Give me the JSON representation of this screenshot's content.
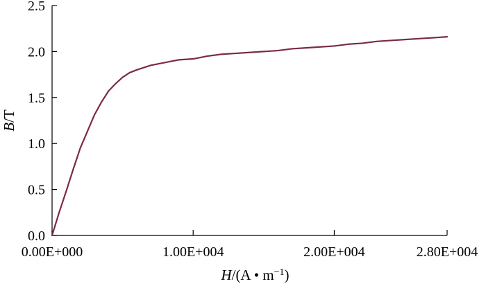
{
  "chart_data": {
    "type": "line",
    "title": "",
    "xlabel": "H/(A • m⁻¹)",
    "xlabel_parts": {
      "var": "H",
      "unit_open": "/(A • m",
      "sup": "−1",
      "unit_close": ")"
    },
    "ylabel": "B/T",
    "ylabel_parts": {
      "var": "B",
      "unit": "/T"
    },
    "xlim": [
      0,
      28000
    ],
    "ylim": [
      0,
      2.5
    ],
    "x_ticks": [
      {
        "value": 0,
        "label": "0.00E+000"
      },
      {
        "value": 10000,
        "label": "1.00E+004"
      },
      {
        "value": 20000,
        "label": "2.00E+004"
      },
      {
        "value": 28000,
        "label": "2.80E+004"
      }
    ],
    "y_ticks": [
      {
        "value": 0.0,
        "label": "0.0"
      },
      {
        "value": 0.5,
        "label": "0.5"
      },
      {
        "value": 1.0,
        "label": "1.0"
      },
      {
        "value": 1.5,
        "label": "1.5"
      },
      {
        "value": 2.0,
        "label": "2.0"
      },
      {
        "value": 2.5,
        "label": "2.5"
      }
    ],
    "grid": false,
    "legend": "none",
    "series": [
      {
        "color": "#7a2a48",
        "x": [
          0,
          500,
          1000,
          1500,
          2000,
          2500,
          3000,
          3500,
          4000,
          4500,
          5000,
          5500,
          6000,
          7000,
          8000,
          9000,
          10000,
          11000,
          12000,
          13000,
          14000,
          15000,
          16000,
          17000,
          18000,
          19000,
          20000,
          21000,
          22000,
          23000,
          24000,
          25000,
          26000,
          27000,
          28000
        ],
        "y": [
          0.0,
          0.25,
          0.48,
          0.72,
          0.95,
          1.13,
          1.31,
          1.45,
          1.57,
          1.65,
          1.72,
          1.77,
          1.8,
          1.85,
          1.88,
          1.91,
          1.92,
          1.95,
          1.97,
          1.98,
          1.99,
          2.0,
          2.01,
          2.03,
          2.04,
          2.05,
          2.06,
          2.08,
          2.09,
          2.11,
          2.12,
          2.13,
          2.14,
          2.15,
          2.16
        ]
      }
    ]
  }
}
